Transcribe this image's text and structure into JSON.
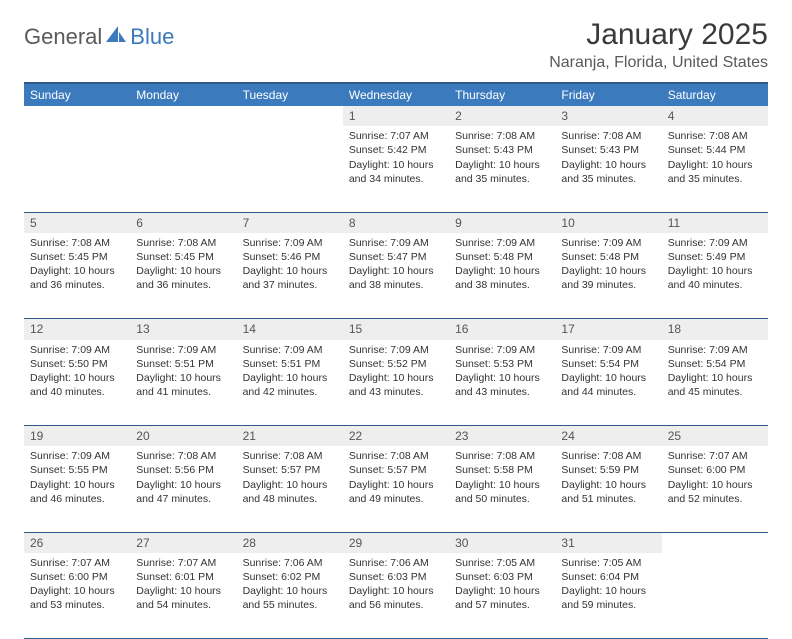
{
  "brand": {
    "part1": "General",
    "part2": "Blue"
  },
  "title": "January 2025",
  "location": "Naranja, Florida, United States",
  "colors": {
    "header_bg": "#3a7abd",
    "header_text": "#ffffff",
    "border": "#2d5a8a",
    "daynum_bg": "#eeeeee",
    "text": "#333333"
  },
  "day_headers": [
    "Sunday",
    "Monday",
    "Tuesday",
    "Wednesday",
    "Thursday",
    "Friday",
    "Saturday"
  ],
  "weeks": [
    {
      "nums": [
        "",
        "",
        "",
        "1",
        "2",
        "3",
        "4"
      ],
      "cells": [
        null,
        null,
        null,
        {
          "sunrise": "7:07 AM",
          "sunset": "5:42 PM",
          "daylight": "10 hours and 34 minutes."
        },
        {
          "sunrise": "7:08 AM",
          "sunset": "5:43 PM",
          "daylight": "10 hours and 35 minutes."
        },
        {
          "sunrise": "7:08 AM",
          "sunset": "5:43 PM",
          "daylight": "10 hours and 35 minutes."
        },
        {
          "sunrise": "7:08 AM",
          "sunset": "5:44 PM",
          "daylight": "10 hours and 35 minutes."
        }
      ]
    },
    {
      "nums": [
        "5",
        "6",
        "7",
        "8",
        "9",
        "10",
        "11"
      ],
      "cells": [
        {
          "sunrise": "7:08 AM",
          "sunset": "5:45 PM",
          "daylight": "10 hours and 36 minutes."
        },
        {
          "sunrise": "7:08 AM",
          "sunset": "5:45 PM",
          "daylight": "10 hours and 36 minutes."
        },
        {
          "sunrise": "7:09 AM",
          "sunset": "5:46 PM",
          "daylight": "10 hours and 37 minutes."
        },
        {
          "sunrise": "7:09 AM",
          "sunset": "5:47 PM",
          "daylight": "10 hours and 38 minutes."
        },
        {
          "sunrise": "7:09 AM",
          "sunset": "5:48 PM",
          "daylight": "10 hours and 38 minutes."
        },
        {
          "sunrise": "7:09 AM",
          "sunset": "5:48 PM",
          "daylight": "10 hours and 39 minutes."
        },
        {
          "sunrise": "7:09 AM",
          "sunset": "5:49 PM",
          "daylight": "10 hours and 40 minutes."
        }
      ]
    },
    {
      "nums": [
        "12",
        "13",
        "14",
        "15",
        "16",
        "17",
        "18"
      ],
      "cells": [
        {
          "sunrise": "7:09 AM",
          "sunset": "5:50 PM",
          "daylight": "10 hours and 40 minutes."
        },
        {
          "sunrise": "7:09 AM",
          "sunset": "5:51 PM",
          "daylight": "10 hours and 41 minutes."
        },
        {
          "sunrise": "7:09 AM",
          "sunset": "5:51 PM",
          "daylight": "10 hours and 42 minutes."
        },
        {
          "sunrise": "7:09 AM",
          "sunset": "5:52 PM",
          "daylight": "10 hours and 43 minutes."
        },
        {
          "sunrise": "7:09 AM",
          "sunset": "5:53 PM",
          "daylight": "10 hours and 43 minutes."
        },
        {
          "sunrise": "7:09 AM",
          "sunset": "5:54 PM",
          "daylight": "10 hours and 44 minutes."
        },
        {
          "sunrise": "7:09 AM",
          "sunset": "5:54 PM",
          "daylight": "10 hours and 45 minutes."
        }
      ]
    },
    {
      "nums": [
        "19",
        "20",
        "21",
        "22",
        "23",
        "24",
        "25"
      ],
      "cells": [
        {
          "sunrise": "7:09 AM",
          "sunset": "5:55 PM",
          "daylight": "10 hours and 46 minutes."
        },
        {
          "sunrise": "7:08 AM",
          "sunset": "5:56 PM",
          "daylight": "10 hours and 47 minutes."
        },
        {
          "sunrise": "7:08 AM",
          "sunset": "5:57 PM",
          "daylight": "10 hours and 48 minutes."
        },
        {
          "sunrise": "7:08 AM",
          "sunset": "5:57 PM",
          "daylight": "10 hours and 49 minutes."
        },
        {
          "sunrise": "7:08 AM",
          "sunset": "5:58 PM",
          "daylight": "10 hours and 50 minutes."
        },
        {
          "sunrise": "7:08 AM",
          "sunset": "5:59 PM",
          "daylight": "10 hours and 51 minutes."
        },
        {
          "sunrise": "7:07 AM",
          "sunset": "6:00 PM",
          "daylight": "10 hours and 52 minutes."
        }
      ]
    },
    {
      "nums": [
        "26",
        "27",
        "28",
        "29",
        "30",
        "31",
        ""
      ],
      "cells": [
        {
          "sunrise": "7:07 AM",
          "sunset": "6:00 PM",
          "daylight": "10 hours and 53 minutes."
        },
        {
          "sunrise": "7:07 AM",
          "sunset": "6:01 PM",
          "daylight": "10 hours and 54 minutes."
        },
        {
          "sunrise": "7:06 AM",
          "sunset": "6:02 PM",
          "daylight": "10 hours and 55 minutes."
        },
        {
          "sunrise": "7:06 AM",
          "sunset": "6:03 PM",
          "daylight": "10 hours and 56 minutes."
        },
        {
          "sunrise": "7:05 AM",
          "sunset": "6:03 PM",
          "daylight": "10 hours and 57 minutes."
        },
        {
          "sunrise": "7:05 AM",
          "sunset": "6:04 PM",
          "daylight": "10 hours and 59 minutes."
        },
        null
      ]
    }
  ],
  "labels": {
    "sunrise": "Sunrise: ",
    "sunset": "Sunset: ",
    "daylight": "Daylight: "
  }
}
